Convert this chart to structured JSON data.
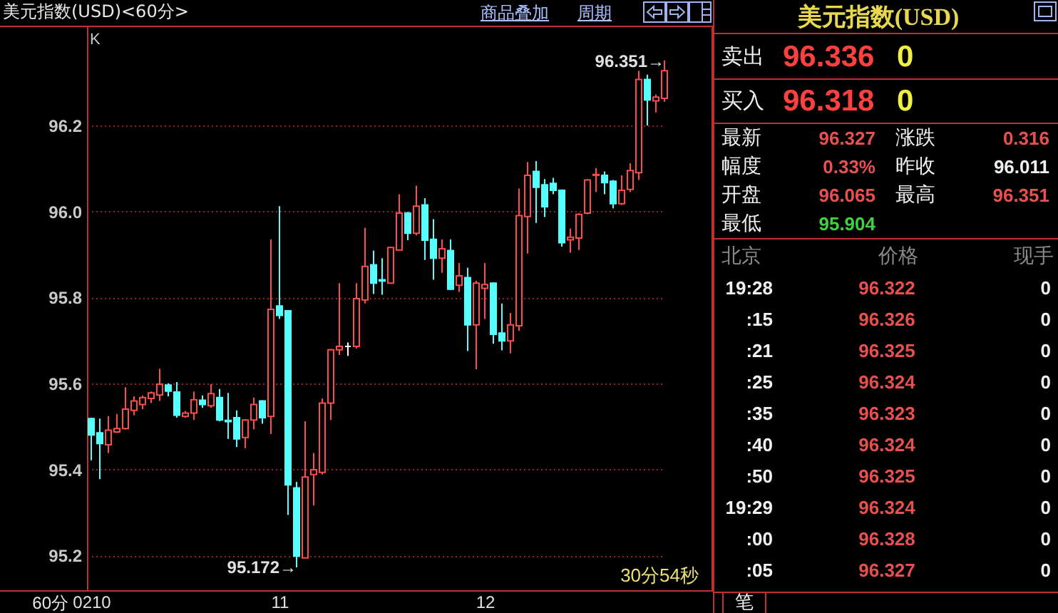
{
  "chart_data": [
    {
      "type": "candlestick",
      "title": "美元指数(USD)<60分>",
      "categories": [
        "0210",
        null,
        null,
        null,
        null,
        null,
        null,
        null,
        null,
        null,
        null,
        null,
        null,
        null,
        null,
        null,
        null,
        null,
        null,
        null,
        null,
        null,
        "11",
        null,
        null,
        null,
        null,
        null,
        null,
        null,
        null,
        null,
        null,
        null,
        null,
        null,
        null,
        null,
        null,
        null,
        null,
        null,
        null,
        null,
        null,
        null,
        "12",
        null,
        null,
        null,
        null,
        null,
        null,
        null,
        null,
        null,
        null,
        null,
        null,
        null,
        null,
        null,
        null,
        null,
        null,
        null,
        null,
        null
      ],
      "ohlc": [
        [
          95.518,
          95.52,
          95.421,
          95.48
        ],
        [
          95.485,
          95.518,
          95.377,
          95.46
        ],
        [
          95.457,
          95.524,
          95.438,
          95.491
        ],
        [
          95.487,
          95.529,
          95.485,
          95.495
        ],
        [
          95.495,
          95.591,
          95.493,
          95.54
        ],
        [
          95.537,
          95.57,
          95.526,
          95.559
        ],
        [
          95.551,
          95.572,
          95.54,
          95.567
        ],
        [
          95.565,
          95.581,
          95.554,
          95.578
        ],
        [
          95.573,
          95.634,
          95.559,
          95.598
        ],
        [
          95.596,
          95.6,
          95.57,
          95.582
        ],
        [
          95.58,
          95.603,
          95.52,
          95.526
        ],
        [
          95.523,
          95.536,
          95.52,
          95.531
        ],
        [
          95.531,
          95.581,
          95.515,
          95.562
        ],
        [
          95.561,
          95.572,
          95.543,
          95.551
        ],
        [
          95.548,
          95.598,
          95.543,
          95.576
        ],
        [
          95.567,
          95.587,
          95.512,
          95.515
        ],
        [
          95.514,
          95.578,
          95.471,
          95.511
        ],
        [
          95.52,
          95.537,
          95.452,
          95.471
        ],
        [
          95.474,
          95.517,
          95.449,
          95.515
        ],
        [
          95.515,
          95.567,
          95.493,
          95.551
        ],
        [
          95.559,
          95.561,
          95.506,
          95.52
        ],
        [
          95.523,
          95.935,
          95.482,
          95.772
        ],
        [
          95.78,
          96.012,
          95.75,
          95.758
        ],
        [
          95.769,
          95.769,
          95.294,
          95.364
        ],
        [
          95.357,
          95.371,
          95.172,
          95.198
        ],
        [
          95.194,
          95.512,
          95.194,
          95.382
        ],
        [
          95.388,
          95.438,
          95.316,
          95.399
        ],
        [
          95.393,
          95.565,
          95.388,
          95.554
        ],
        [
          95.554,
          95.68,
          95.515,
          95.678
        ],
        [
          95.678,
          95.833,
          95.666,
          95.686
        ],
        [
          95.686,
          95.695,
          95.664,
          95.686
        ],
        [
          95.686,
          95.833,
          95.681,
          95.797
        ],
        [
          95.794,
          95.962,
          95.786,
          95.872
        ],
        [
          95.876,
          95.909,
          95.808,
          95.833
        ],
        [
          95.841,
          95.891,
          95.806,
          95.838
        ],
        [
          95.833,
          95.918,
          95.833,
          95.916
        ],
        [
          95.91,
          96.04,
          95.91,
          95.996
        ],
        [
          95.996,
          95.999,
          95.933,
          95.949
        ],
        [
          95.949,
          96.06,
          95.944,
          96.012
        ],
        [
          96.015,
          96.031,
          95.887,
          95.933
        ],
        [
          95.935,
          95.982,
          95.841,
          95.891
        ],
        [
          95.891,
          95.935,
          95.857,
          95.913
        ],
        [
          95.909,
          95.935,
          95.817,
          95.819
        ],
        [
          95.828,
          95.88,
          95.813,
          95.85
        ],
        [
          95.846,
          95.869,
          95.675,
          95.736
        ],
        [
          95.736,
          95.839,
          95.633,
          95.833
        ],
        [
          95.821,
          95.88,
          95.75,
          95.83
        ],
        [
          95.833,
          95.835,
          95.692,
          95.714
        ],
        [
          95.717,
          95.786,
          95.677,
          95.699
        ],
        [
          95.699,
          95.764,
          95.67,
          95.736
        ],
        [
          95.734,
          96.053,
          95.722,
          95.99
        ],
        [
          95.988,
          96.115,
          95.902,
          96.084
        ],
        [
          96.093,
          96.117,
          95.973,
          96.056
        ],
        [
          96.062,
          96.075,
          95.987,
          96.011
        ],
        [
          96.065,
          96.078,
          96.04,
          96.049
        ],
        [
          96.049,
          96.051,
          95.918,
          95.927
        ],
        [
          95.934,
          95.96,
          95.904,
          95.94
        ],
        [
          95.938,
          95.996,
          95.91,
          95.993
        ],
        [
          95.996,
          96.075,
          95.993,
          96.073
        ],
        [
          96.084,
          96.101,
          96.045,
          96.086
        ],
        [
          96.084,
          96.093,
          96.04,
          96.067
        ],
        [
          96.07,
          96.073,
          96.007,
          96.018
        ],
        [
          96.018,
          96.084,
          96.015,
          96.049
        ],
        [
          96.051,
          96.112,
          96.045,
          96.095
        ],
        [
          96.09,
          96.327,
          96.073,
          96.307
        ],
        [
          96.307,
          96.318,
          96.2,
          96.259
        ],
        [
          96.257,
          96.272,
          96.23,
          96.266
        ],
        [
          96.263,
          96.351,
          96.255,
          96.327
        ]
      ],
      "colors": [
        "#54ffff",
        "#54ffff",
        "#ff4a4a",
        "#ff4a4a",
        "#ff4a4a",
        "#ff4a4a",
        "#ff4a4a",
        "#ff4a4a",
        "#ff4a4a",
        "#54ffff",
        "#54ffff",
        "#ff4a4a",
        "#ff4a4a",
        "#54ffff",
        "#ff4a4a",
        "#54ffff",
        "#54ffff",
        "#54ffff",
        "#ff4a4a",
        "#ff4a4a",
        "#54ffff",
        "#ff4a4a",
        "#54ffff",
        "#54ffff",
        "#54ffff",
        "#ff4a4a",
        "#ff4a4a",
        "#ff4a4a",
        "#ff4a4a",
        "#ff4a4a",
        "#ffffff",
        "#ff4a4a",
        "#ff4a4a",
        "#54ffff",
        "#54ffff",
        "#ff4a4a",
        "#ff4a4a",
        "#54ffff",
        "#ff4a4a",
        "#54ffff",
        "#54ffff",
        "#ff4a4a",
        "#54ffff",
        "#ff4a4a",
        "#54ffff",
        "#ff4a4a",
        "#ff4a4a",
        "#54ffff",
        "#54ffff",
        "#ff4a4a",
        "#ff4a4a",
        "#ff4a4a",
        "#54ffff",
        "#54ffff",
        "#54ffff",
        "#54ffff",
        "#ff4a4a",
        "#ff4a4a",
        "#ff4a4a",
        "#ff4a4a",
        "#54ffff",
        "#54ffff",
        "#ff4a4a",
        "#ff4a4a",
        "#ff4a4a",
        "#54ffff",
        "#ff4a4a",
        "#ff4a4a"
      ],
      "ylim": [
        95.119,
        96.432
      ],
      "yticks": [
        95.2,
        95.4,
        95.6,
        95.8,
        {
          "value": 96,
          "label": "96.0"
        },
        96.2
      ],
      "grid": "y",
      "annotations": [
        "K",
        "60分",
        "30分54秒",
        "商品叠加",
        "周期",
        "95.172→",
        "96.351→"
      ]
    },
    {
      "type": "other",
      "title": "美元指数(USD)",
      "annotations": [
        "卖出",
        "96.336",
        "0",
        "买入",
        "96.318",
        "0",
        "最新",
        "96.327",
        "涨跌",
        "0.316",
        "幅度",
        "0.33%",
        "昨收",
        "96.011",
        "开盘",
        "96.065",
        "最高",
        "96.351",
        "最低",
        "95.904",
        "北京",
        "价格",
        "现手",
        "19:28",
        "96.322",
        "0",
        ":15",
        "96.326",
        "0",
        ":21",
        "96.325",
        "0",
        ":25",
        "96.324",
        "0",
        ":35",
        "96.323",
        "0",
        ":40",
        "96.324",
        "0",
        ":50",
        "96.325",
        "0",
        "19:29",
        "96.324",
        "0",
        ":00",
        "96.328",
        "0",
        ":05",
        "96.327",
        "0",
        "笔"
      ]
    }
  ]
}
